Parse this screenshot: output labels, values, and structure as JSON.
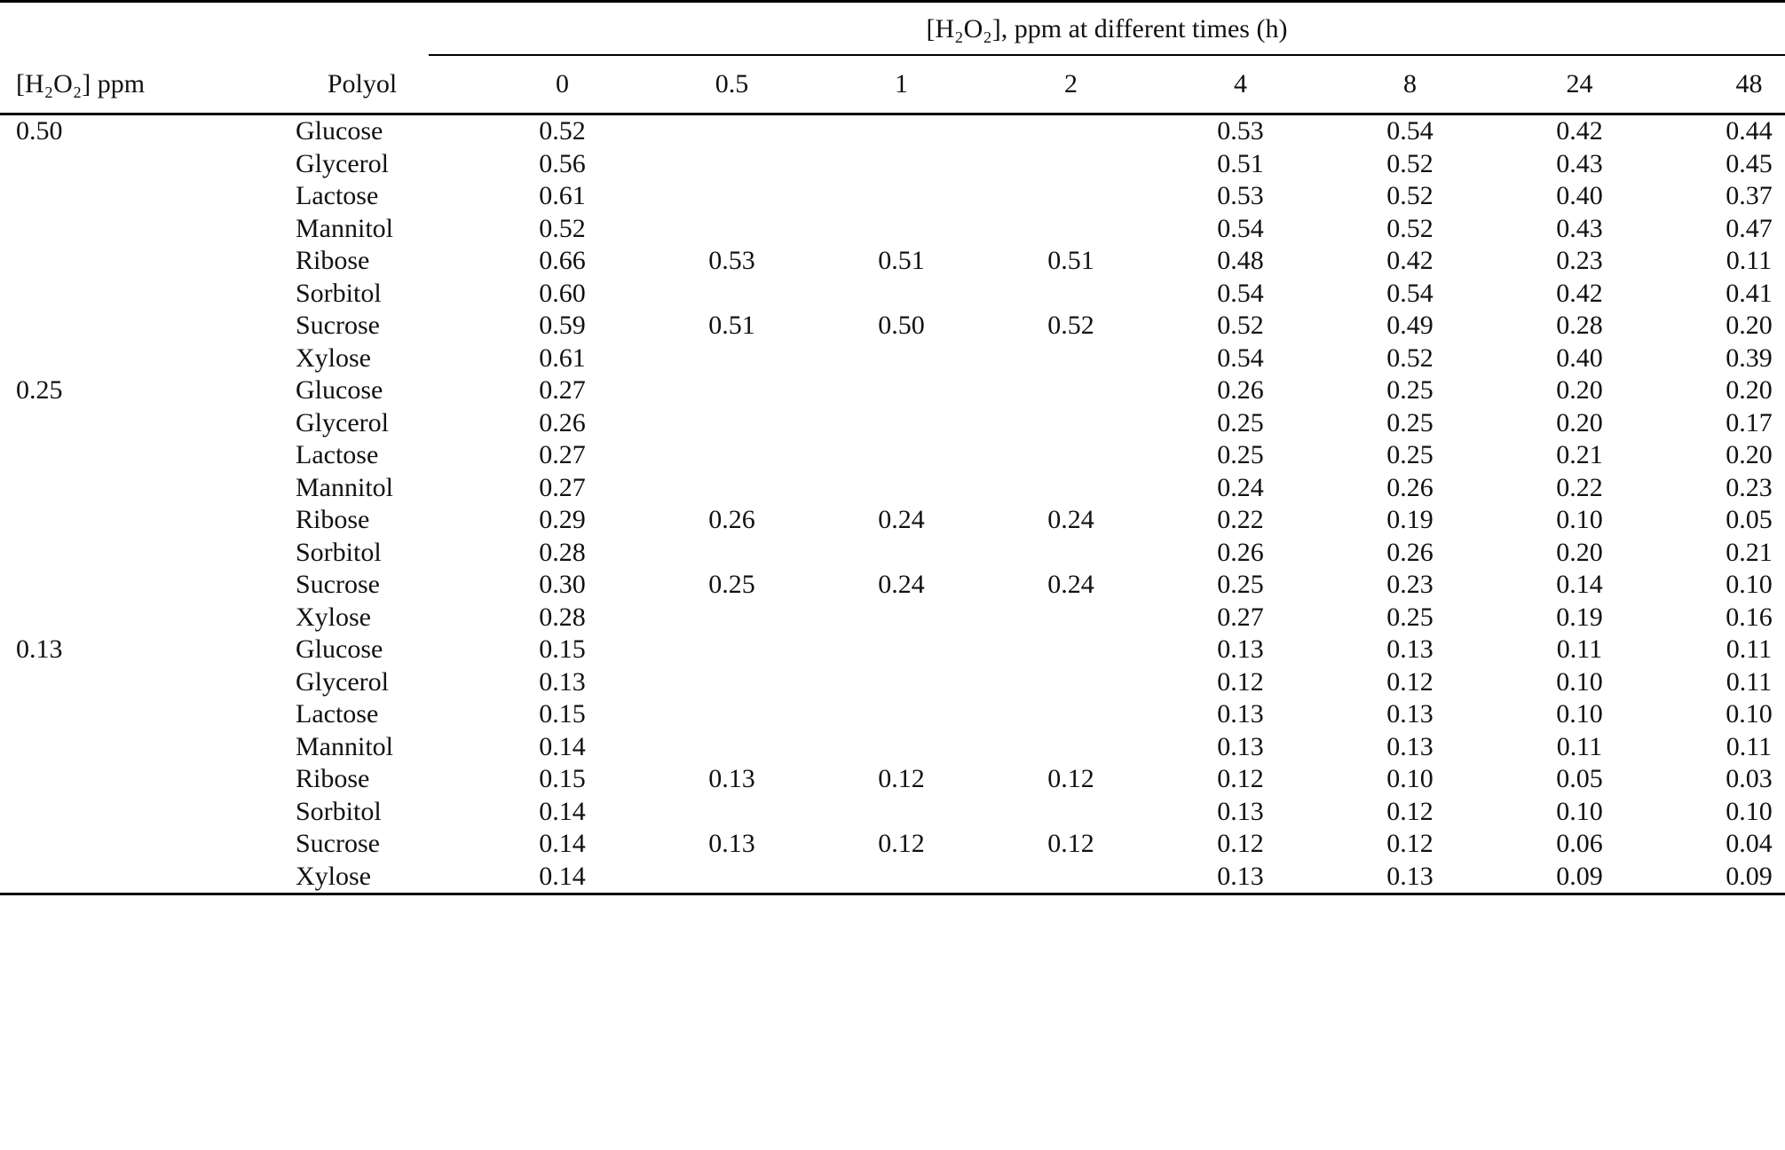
{
  "page": {
    "background_color": "#ffffff",
    "text_color": "#111111",
    "rule_color": "#000000"
  },
  "table": {
    "span_header": "[H₂O₂], ppm at different times (h)",
    "columns": {
      "concentration": "[H₂O₂] ppm",
      "polyol": "Polyol"
    },
    "time_headers": [
      "0",
      "0.5",
      "1",
      "2",
      "4",
      "8",
      "24",
      "48"
    ],
    "groups": [
      {
        "concentration": "0.50",
        "rows": [
          {
            "polyol": "Glucose",
            "values": [
              "0.52",
              "",
              "",
              "",
              "0.53",
              "0.54",
              "0.42",
              "0.44"
            ]
          },
          {
            "polyol": "Glycerol",
            "values": [
              "0.56",
              "",
              "",
              "",
              "0.51",
              "0.52",
              "0.43",
              "0.45"
            ]
          },
          {
            "polyol": "Lactose",
            "values": [
              "0.61",
              "",
              "",
              "",
              "0.53",
              "0.52",
              "0.40",
              "0.37"
            ]
          },
          {
            "polyol": "Mannitol",
            "values": [
              "0.52",
              "",
              "",
              "",
              "0.54",
              "0.52",
              "0.43",
              "0.47"
            ]
          },
          {
            "polyol": "Ribose",
            "values": [
              "0.66",
              "0.53",
              "0.51",
              "0.51",
              "0.48",
              "0.42",
              "0.23",
              "0.11"
            ]
          },
          {
            "polyol": "Sorbitol",
            "values": [
              "0.60",
              "",
              "",
              "",
              "0.54",
              "0.54",
              "0.42",
              "0.41"
            ]
          },
          {
            "polyol": "Sucrose",
            "values": [
              "0.59",
              "0.51",
              "0.50",
              "0.52",
              "0.52",
              "0.49",
              "0.28",
              "0.20"
            ]
          },
          {
            "polyol": "Xylose",
            "values": [
              "0.61",
              "",
              "",
              "",
              "0.54",
              "0.52",
              "0.40",
              "0.39"
            ]
          }
        ]
      },
      {
        "concentration": "0.25",
        "rows": [
          {
            "polyol": "Glucose",
            "values": [
              "0.27",
              "",
              "",
              "",
              "0.26",
              "0.25",
              "0.20",
              "0.20"
            ]
          },
          {
            "polyol": "Glycerol",
            "values": [
              "0.26",
              "",
              "",
              "",
              "0.25",
              "0.25",
              "0.20",
              "0.17"
            ]
          },
          {
            "polyol": "Lactose",
            "values": [
              "0.27",
              "",
              "",
              "",
              "0.25",
              "0.25",
              "0.21",
              "0.20"
            ]
          },
          {
            "polyol": "Mannitol",
            "values": [
              "0.27",
              "",
              "",
              "",
              "0.24",
              "0.26",
              "0.22",
              "0.23"
            ]
          },
          {
            "polyol": "Ribose",
            "values": [
              "0.29",
              "0.26",
              "0.24",
              "0.24",
              "0.22",
              "0.19",
              "0.10",
              "0.05"
            ]
          },
          {
            "polyol": "Sorbitol",
            "values": [
              "0.28",
              "",
              "",
              "",
              "0.26",
              "0.26",
              "0.20",
              "0.21"
            ]
          },
          {
            "polyol": "Sucrose",
            "values": [
              "0.30",
              "0.25",
              "0.24",
              "0.24",
              "0.25",
              "0.23",
              "0.14",
              "0.10"
            ]
          },
          {
            "polyol": "Xylose",
            "values": [
              "0.28",
              "",
              "",
              "",
              "0.27",
              "0.25",
              "0.19",
              "0.16"
            ]
          }
        ]
      },
      {
        "concentration": "0.13",
        "rows": [
          {
            "polyol": "Glucose",
            "values": [
              "0.15",
              "",
              "",
              "",
              "0.13",
              "0.13",
              "0.11",
              "0.11"
            ]
          },
          {
            "polyol": "Glycerol",
            "values": [
              "0.13",
              "",
              "",
              "",
              "0.12",
              "0.12",
              "0.10",
              "0.11"
            ]
          },
          {
            "polyol": "Lactose",
            "values": [
              "0.15",
              "",
              "",
              "",
              "0.13",
              "0.13",
              "0.10",
              "0.10"
            ]
          },
          {
            "polyol": "Mannitol",
            "values": [
              "0.14",
              "",
              "",
              "",
              "0.13",
              "0.13",
              "0.11",
              "0.11"
            ]
          },
          {
            "polyol": "Ribose",
            "values": [
              "0.15",
              "0.13",
              "0.12",
              "0.12",
              "0.12",
              "0.10",
              "0.05",
              "0.03"
            ]
          },
          {
            "polyol": "Sorbitol",
            "values": [
              "0.14",
              "",
              "",
              "",
              "0.13",
              "0.12",
              "0.10",
              "0.10"
            ]
          },
          {
            "polyol": "Sucrose",
            "values": [
              "0.14",
              "0.13",
              "0.12",
              "0.12",
              "0.12",
              "0.12",
              "0.06",
              "0.04"
            ]
          },
          {
            "polyol": "Xylose",
            "values": [
              "0.14",
              "",
              "",
              "",
              "0.13",
              "0.13",
              "0.09",
              "0.09"
            ]
          }
        ]
      }
    ]
  }
}
